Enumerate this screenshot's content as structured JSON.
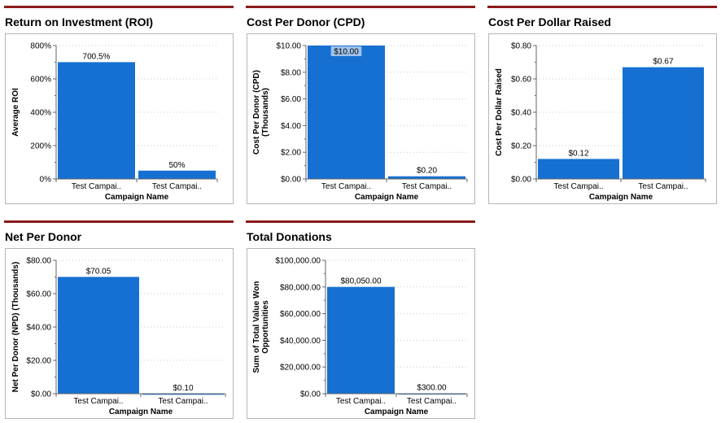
{
  "chart_data": [
    {
      "type": "bar",
      "title": "Return on Investment (ROI)",
      "xlabel": "Campaign Name",
      "ylabel": [
        "Average ROI"
      ],
      "categories": [
        "Test Campai..",
        "Test Campai.."
      ],
      "values": [
        700.5,
        50
      ],
      "value_labels": [
        "700.5%",
        "50%"
      ],
      "ylim": [
        0,
        800
      ],
      "yticks": [
        0,
        200,
        400,
        600,
        800
      ],
      "ytick_labels": [
        "0%",
        "200%",
        "400%",
        "600%",
        "800%"
      ],
      "grid": true,
      "bar_color": "#1570d1"
    },
    {
      "type": "bar",
      "title": "Cost Per Donor (CPD)",
      "xlabel": "Campaign Name",
      "ylabel": [
        "Cost Per Donor (CPD)",
        "(Thousands)"
      ],
      "categories": [
        "Test Campai..",
        "Test Campai.."
      ],
      "values": [
        10.0,
        0.2
      ],
      "value_labels": [
        "$10.00",
        "$0.20"
      ],
      "ylim": [
        0,
        10
      ],
      "yticks": [
        0,
        2,
        4,
        6,
        8,
        10
      ],
      "ytick_labels": [
        "$0.00",
        "$2.00",
        "$4.00",
        "$6.00",
        "$8.00",
        "$10.00"
      ],
      "grid": true,
      "bar_color": "#1570d1"
    },
    {
      "type": "bar",
      "title": "Cost Per Dollar Raised",
      "xlabel": "Campaign Name",
      "ylabel": [
        "Cost Per Dollar Raised"
      ],
      "categories": [
        "Test Campai..",
        "Test Campai.."
      ],
      "values": [
        0.12,
        0.67
      ],
      "value_labels": [
        "$0.12",
        "$0.67"
      ],
      "ylim": [
        0,
        0.8
      ],
      "yticks": [
        0,
        0.2,
        0.4,
        0.6,
        0.8
      ],
      "ytick_labels": [
        "$0.00",
        "$0.20",
        "$0.40",
        "$0.60",
        "$0.80"
      ],
      "grid": true,
      "bar_color": "#1570d1"
    },
    {
      "type": "bar",
      "title": "Net Per Donor",
      "xlabel": "Campaign Name",
      "ylabel": [
        "Net Per Donor (NPD) (Thousands)"
      ],
      "categories": [
        "Test Campai..",
        "Test Campai.."
      ],
      "values": [
        70.05,
        0.1
      ],
      "value_labels": [
        "$70.05",
        "$0.10"
      ],
      "ylim": [
        0,
        80
      ],
      "yticks": [
        0,
        20,
        40,
        60,
        80
      ],
      "ytick_labels": [
        "$0.00",
        "$20.00",
        "$40.00",
        "$60.00",
        "$80.00"
      ],
      "grid": true,
      "bar_color": "#1570d1"
    },
    {
      "type": "bar",
      "title": "Total Donations",
      "xlabel": "Campaign Name",
      "ylabel": [
        "Sum of Total Value Won",
        "Opportunities"
      ],
      "categories": [
        "Test Campai..",
        "Test Campai.."
      ],
      "values": [
        80050,
        300
      ],
      "value_labels": [
        "$80,050.00",
        "$300.00"
      ],
      "ylim": [
        0,
        100000
      ],
      "yticks": [
        0,
        20000,
        40000,
        60000,
        80000,
        100000
      ],
      "ytick_labels": [
        "$0.00",
        "$20,000.00",
        "$40,000.00",
        "$60,000.00",
        "$80,000.00",
        "$100,000.00"
      ],
      "grid": true,
      "bar_color": "#1570d1"
    }
  ]
}
